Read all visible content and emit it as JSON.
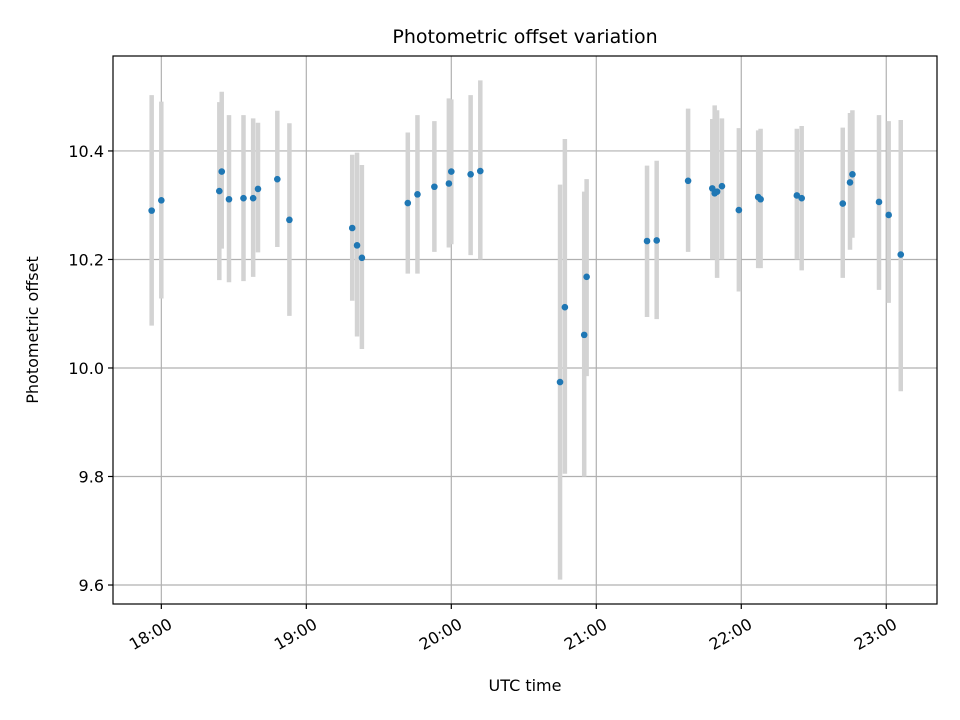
{
  "chart_data": {
    "type": "scatter",
    "title": "Photometric offset variation",
    "xlabel": "UTC time",
    "ylabel": "Photometric offset",
    "x_ticks": [
      "18:00",
      "19:00",
      "20:00",
      "21:00",
      "22:00",
      "23:00"
    ],
    "y_ticks": [
      "9.6",
      "9.8",
      "10.0",
      "10.2",
      "10.4"
    ],
    "xlim": [
      "17:40",
      "23:21"
    ],
    "ylim": [
      9.565,
      10.575
    ],
    "grid": true,
    "colors": {
      "points": "#1f77b4",
      "errorbars": "#d3d3d3",
      "grid": "#b0b0b0"
    },
    "series": [
      {
        "x": [
          "17:56",
          "18:00",
          "18:24",
          "18:25",
          "18:28",
          "18:34",
          "18:38",
          "18:40",
          "18:48",
          "18:53",
          "19:19",
          "19:21",
          "19:23",
          "19:42",
          "19:46",
          "19:53",
          "19:59",
          "20:00",
          "20:08",
          "20:12",
          "20:45",
          "20:47",
          "20:55",
          "20:56",
          "21:21",
          "21:25",
          "21:38",
          "21:48",
          "21:49",
          "21:50",
          "21:52",
          "21:59",
          "22:07",
          "22:08",
          "22:23",
          "22:25",
          "22:42",
          "22:45",
          "22:46",
          "22:57",
          "23:01",
          "23:06"
        ],
        "y": [
          10.29,
          10.309,
          10.326,
          10.362,
          10.311,
          10.313,
          10.313,
          10.33,
          10.348,
          10.273,
          10.258,
          10.226,
          10.203,
          10.304,
          10.32,
          10.334,
          10.34,
          10.362,
          10.357,
          10.363,
          9.974,
          10.112,
          10.061,
          10.168,
          10.234,
          10.235,
          10.345,
          10.331,
          10.322,
          10.325,
          10.335,
          10.291,
          10.315,
          10.311,
          10.318,
          10.313,
          10.303,
          10.342,
          10.357,
          10.306,
          10.282,
          10.209
        ],
        "y_err_low": [
          10.078,
          10.128,
          10.162,
          10.22,
          10.158,
          10.16,
          10.168,
          10.213,
          10.223,
          10.096,
          10.124,
          10.058,
          10.035,
          10.174,
          10.174,
          10.214,
          10.222,
          10.228,
          10.208,
          10.2,
          9.61,
          9.805,
          9.8,
          9.985,
          10.094,
          10.09,
          10.214,
          10.2,
          10.2,
          10.166,
          10.2,
          10.141,
          10.184,
          10.184,
          10.2,
          10.18,
          10.166,
          10.218,
          10.24,
          10.144,
          10.12,
          9.957
        ],
        "y_err_high": [
          10.503,
          10.491,
          10.49,
          10.509,
          10.466,
          10.466,
          10.46,
          10.452,
          10.474,
          10.451,
          10.393,
          10.397,
          10.374,
          10.434,
          10.466,
          10.455,
          10.497,
          10.495,
          10.503,
          10.53,
          10.338,
          10.422,
          10.325,
          10.348,
          10.373,
          10.382,
          10.478,
          10.459,
          10.484,
          10.475,
          10.46,
          10.442,
          10.438,
          10.441,
          10.441,
          10.446,
          10.443,
          10.47,
          10.475,
          10.466,
          10.455,
          10.457
        ]
      }
    ]
  }
}
